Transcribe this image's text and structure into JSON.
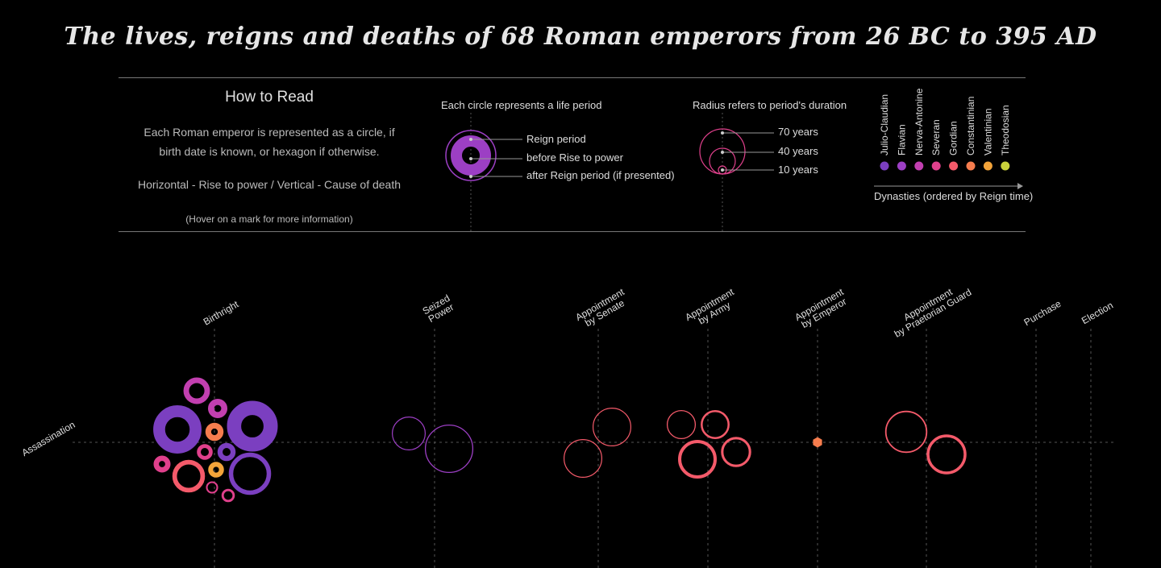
{
  "title": "The lives, reigns and deaths of 68 Roman emperors from 26 BC to 395 AD",
  "how_to_read": {
    "heading": "How to Read",
    "line1": "Each Roman emperor is represented as a circle, if birth date is known, or hexagon if otherwise.",
    "line2": "Horizontal - Rise to power / Vertical - Cause of death",
    "line3": "(Hover on a mark for more information)"
  },
  "legend_circle": {
    "heading": "Each circle represents a life period",
    "items": [
      "Reign period",
      "before Rise to power",
      "after Reign period (if presented)"
    ]
  },
  "legend_radius": {
    "heading": "Radius refers to period's duration",
    "items": [
      "70 years",
      "40 years",
      "10 years"
    ]
  },
  "legend_dynasty": {
    "caption": "Dynasties (ordered by Reign time)",
    "items": [
      {
        "name": "Julio-Claudian",
        "color": "#7b3fc0"
      },
      {
        "name": "Flavian",
        "color": "#9c3fc4"
      },
      {
        "name": "Nerva-Antonine",
        "color": "#c23fb0"
      },
      {
        "name": "Severan",
        "color": "#e0408c"
      },
      {
        "name": "Gordian",
        "color": "#f45a6a"
      },
      {
        "name": "Constantinian",
        "color": "#f67d4e"
      },
      {
        "name": "Valentinian",
        "color": "#f3a43a"
      },
      {
        "name": "Theodosian",
        "color": "#c9d13c"
      }
    ]
  },
  "chart_data": {
    "type": "scatter",
    "x_categories": [
      "Birthright",
      "Seized Power",
      "Appointment by Senate",
      "Appointment by Army",
      "Appointment by Emperor",
      "Appointment by Praetorian Guard",
      "Purchase",
      "Election"
    ],
    "y_categories": [
      "Assassination"
    ],
    "marks": [
      {
        "x": "Birthright",
        "y": "Assassination",
        "dynasty": "Nerva-Antonine",
        "life": 22
      },
      {
        "x": "Birthright",
        "y": "Assassination",
        "dynasty": "Nerva-Antonine",
        "life": 16
      },
      {
        "x": "Birthright",
        "y": "Assassination",
        "dynasty": "Julio-Claudian",
        "life": 40
      },
      {
        "x": "Birthright",
        "y": "Assassination",
        "dynasty": "Julio-Claudian",
        "life": 42
      },
      {
        "x": "Birthright",
        "y": "Assassination",
        "dynasty": "Constantinian",
        "life": 15
      },
      {
        "x": "Birthright",
        "y": "Assassination",
        "dynasty": "Julio-Claudian",
        "life": 15
      },
      {
        "x": "Birthright",
        "y": "Assassination",
        "dynasty": "Severan",
        "life": 13
      },
      {
        "x": "Birthright",
        "y": "Assassination",
        "dynasty": "Severan",
        "life": 14
      },
      {
        "x": "Birthright",
        "y": "Assassination",
        "dynasty": "Gordian",
        "life": 27
      },
      {
        "x": "Birthright",
        "y": "Assassination",
        "dynasty": "Valentinian",
        "life": 13
      },
      {
        "x": "Birthright",
        "y": "Assassination",
        "dynasty": "Julio-Claudian",
        "life": 35
      },
      {
        "x": "Birthright",
        "y": "Assassination",
        "dynasty": "Severan",
        "life": 10
      },
      {
        "x": "Birthright",
        "y": "Assassination",
        "dynasty": "Severan",
        "life": 11
      },
      {
        "x": "Seized Power",
        "y": "Assassination",
        "dynasty": "Flavian",
        "life": 28
      },
      {
        "x": "Seized Power",
        "y": "Assassination",
        "dynasty": "Flavian",
        "life": 40
      },
      {
        "x": "Appointment by Senate",
        "y": "Assassination",
        "dynasty": "Gordian",
        "life": 32
      },
      {
        "x": "Appointment by Senate",
        "y": "Assassination",
        "dynasty": "Gordian",
        "life": 32
      },
      {
        "x": "Appointment by Army",
        "y": "Assassination",
        "dynasty": "Gordian",
        "life": 24
      },
      {
        "x": "Appointment by Army",
        "y": "Assassination",
        "dynasty": "Gordian",
        "life": 24
      },
      {
        "x": "Appointment by Army",
        "y": "Assassination",
        "dynasty": "Gordian",
        "life": 32
      },
      {
        "x": "Appointment by Army",
        "y": "Assassination",
        "dynasty": "Gordian",
        "life": 25
      },
      {
        "x": "Appointment by Emperor",
        "y": "Assassination",
        "dynasty": "Constantinian",
        "life": null
      },
      {
        "x": "Appointment by Praetorian Guard",
        "y": "Assassination",
        "dynasty": "Gordian",
        "life": 35
      },
      {
        "x": "Appointment by Praetorian Guard",
        "y": "Assassination",
        "dynasty": "Gordian",
        "life": 33
      }
    ]
  }
}
